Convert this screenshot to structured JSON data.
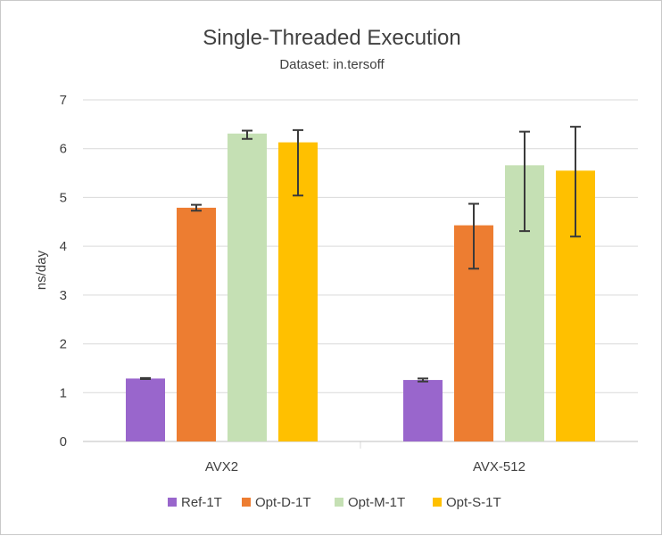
{
  "chart_data": {
    "type": "bar",
    "title": "Single-Threaded Execution",
    "subtitle": "Dataset: in.tersoff",
    "xlabel": "",
    "ylabel": "ns/day",
    "ylim": [
      0,
      7
    ],
    "yticks": [
      "0",
      "1",
      "2",
      "3",
      "4",
      "5",
      "6",
      "7"
    ],
    "grid": true,
    "legend_position": "bottom",
    "categories": [
      "AVX2",
      "AVX-512"
    ],
    "series": [
      {
        "name": "Ref-1T",
        "color": "#9966cc",
        "values": [
          1.29,
          1.26
        ],
        "error_low": [
          1.28,
          1.23
        ],
        "error_high": [
          1.3,
          1.29
        ]
      },
      {
        "name": "Opt-D-1T",
        "color": "#ed7d31",
        "values": [
          4.79,
          4.43
        ],
        "error_low": [
          4.73,
          3.54
        ],
        "error_high": [
          4.85,
          4.87
        ]
      },
      {
        "name": "Opt-M-1T",
        "color": "#c5e0b4",
        "values": [
          6.31,
          5.66
        ],
        "error_low": [
          6.2,
          4.31
        ],
        "error_high": [
          6.37,
          6.35
        ]
      },
      {
        "name": "Opt-S-1T",
        "color": "#ffc000",
        "values": [
          6.13,
          5.55
        ],
        "error_low": [
          5.04,
          4.2
        ],
        "error_high": [
          6.38,
          6.45
        ]
      }
    ]
  }
}
